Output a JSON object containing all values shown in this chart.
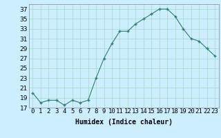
{
  "x": [
    0,
    1,
    2,
    3,
    4,
    5,
    6,
    7,
    8,
    9,
    10,
    11,
    12,
    13,
    14,
    15,
    16,
    17,
    18,
    19,
    20,
    21,
    22,
    23
  ],
  "y": [
    20,
    18,
    18.5,
    18.5,
    17.5,
    18.5,
    18,
    18.5,
    23,
    27,
    30,
    32.5,
    32.5,
    34,
    35,
    36,
    37,
    37,
    35.5,
    33,
    31,
    30.5,
    29,
    27.5
  ],
  "line_color": "#2e7d6e",
  "marker": "+",
  "bg_color": "#cceeff",
  "grid_color": "#aaddcc",
  "xlabel": "Humidex (Indice chaleur)",
  "ylim": [
    17,
    38
  ],
  "yticks": [
    17,
    19,
    21,
    23,
    25,
    27,
    29,
    31,
    33,
    35,
    37
  ],
  "xlim": [
    -0.5,
    23.5
  ],
  "xtick_labels": [
    "0",
    "1",
    "2",
    "3",
    "4",
    "5",
    "6",
    "7",
    "8",
    "9",
    "10",
    "11",
    "12",
    "13",
    "14",
    "15",
    "16",
    "17",
    "18",
    "19",
    "20",
    "21",
    "22",
    "23"
  ],
  "xlabel_fontsize": 7,
  "tick_fontsize": 6.5
}
